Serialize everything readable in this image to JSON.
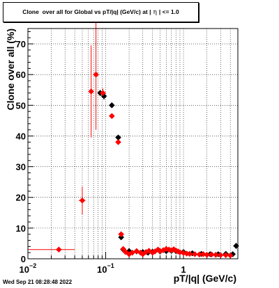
{
  "title": {
    "before_symbol": "Clone  over all for Global vs pT/|q| (GeV/c) at |",
    "symbol": "η",
    "after_symbol": "| <= 1.0"
  },
  "datestamp": "Wed Sep 21 08:28:48 2022",
  "chart_data": {
    "type": "scatter",
    "title": "Clone  over all for Global vs pT/|q| (GeV/c) at | η | <= 1.0",
    "xlabel": "pT/|q| (GeV/c)",
    "ylabel": "Clone  over all (%)",
    "xscale": "log",
    "xlim": [
      0.01,
      5.0
    ],
    "ylim": [
      0,
      75
    ],
    "grid": true,
    "x_ticks": [
      {
        "value": 0.01,
        "label": "10",
        "exponent": "−2"
      },
      {
        "value": 0.1,
        "label": "10",
        "exponent": "−1"
      },
      {
        "value": 1,
        "label": "1",
        "exponent": ""
      }
    ],
    "y_ticks": [
      0,
      10,
      20,
      30,
      40,
      50,
      60,
      70
    ],
    "colors": {
      "series_black": "#000000",
      "series_red": "#ff0000"
    },
    "series": [
      {
        "color": "#000000",
        "points": [
          {
            "x": 0.085,
            "y": 54.0,
            "yerr": 1.0
          },
          {
            "x": 0.095,
            "y": 53.0,
            "yerr": 1.2
          },
          {
            "x": 0.12,
            "y": 50.0,
            "yerr": 0.8
          },
          {
            "x": 0.145,
            "y": 39.5,
            "yerr": 0.7
          },
          {
            "x": 0.158,
            "y": 7.0,
            "yerr": 0.5
          },
          {
            "x": 0.168,
            "y": 3.0,
            "yerr": 0.3
          },
          {
            "x": 0.2,
            "y": 2.5
          },
          {
            "x": 0.25,
            "y": 2.4
          },
          {
            "x": 0.3,
            "y": 2.2
          },
          {
            "x": 0.35,
            "y": 2.0
          },
          {
            "x": 0.4,
            "y": 2.3
          },
          {
            "x": 0.5,
            "y": 2.4
          },
          {
            "x": 0.6,
            "y": 2.5
          },
          {
            "x": 0.7,
            "y": 2.6
          },
          {
            "x": 0.8,
            "y": 2.5
          },
          {
            "x": 1.0,
            "y": 2.2
          },
          {
            "x": 1.3,
            "y": 1.8
          },
          {
            "x": 1.7,
            "y": 1.6
          },
          {
            "x": 2.2,
            "y": 1.5
          },
          {
            "x": 2.8,
            "y": 1.5
          },
          {
            "x": 3.5,
            "y": 1.6
          },
          {
            "x": 4.3,
            "y": 1.5
          },
          {
            "x": 4.75,
            "y": 4.2,
            "yerr": 1.0
          }
        ]
      },
      {
        "color": "#ff0000",
        "points": [
          {
            "x": 0.025,
            "y": 3.0,
            "xerr": [
              0.01,
              0.04
            ],
            "yerr": 0.8
          },
          {
            "x": 0.05,
            "y": 19.0,
            "xerr": [
              0.045,
              0.055
            ],
            "yerr": 4.5
          },
          {
            "x": 0.065,
            "y": 54.5,
            "yerr": 15.0
          },
          {
            "x": 0.075,
            "y": 60.0,
            "yerr": 18.0
          },
          {
            "x": 0.092,
            "y": 54.0,
            "yerr": 1.5
          },
          {
            "x": 0.12,
            "y": 46.5,
            "yerr": 0.8
          },
          {
            "x": 0.145,
            "y": 38.0,
            "yerr": 0.7
          },
          {
            "x": 0.158,
            "y": 8.0,
            "yerr": 0.6
          },
          {
            "x": 0.168,
            "y": 3.2,
            "yerr": 0.4
          },
          {
            "x": 0.18,
            "y": 2.2
          },
          {
            "x": 0.2,
            "y": 1.5
          },
          {
            "x": 0.22,
            "y": 2.0
          },
          {
            "x": 0.25,
            "y": 2.5
          },
          {
            "x": 0.28,
            "y": 2.0
          },
          {
            "x": 0.3,
            "y": 1.5
          },
          {
            "x": 0.33,
            "y": 2.2
          },
          {
            "x": 0.36,
            "y": 2.6
          },
          {
            "x": 0.4,
            "y": 2.0
          },
          {
            "x": 0.43,
            "y": 2.4
          },
          {
            "x": 0.47,
            "y": 3.0
          },
          {
            "x": 0.5,
            "y": 2.5
          },
          {
            "x": 0.55,
            "y": 2.8
          },
          {
            "x": 0.6,
            "y": 3.2
          },
          {
            "x": 0.65,
            "y": 3.0
          },
          {
            "x": 0.7,
            "y": 2.8
          },
          {
            "x": 0.75,
            "y": 3.1
          },
          {
            "x": 0.8,
            "y": 2.7
          },
          {
            "x": 0.85,
            "y": 2.4
          },
          {
            "x": 0.9,
            "y": 2.1
          },
          {
            "x": 1.0,
            "y": 1.9
          },
          {
            "x": 1.1,
            "y": 1.7
          },
          {
            "x": 1.2,
            "y": 1.6
          },
          {
            "x": 1.4,
            "y": 1.5
          },
          {
            "x": 1.6,
            "y": 1.4
          },
          {
            "x": 1.8,
            "y": 1.5
          },
          {
            "x": 2.0,
            "y": 1.3
          },
          {
            "x": 2.3,
            "y": 1.4
          },
          {
            "x": 2.6,
            "y": 1.3
          },
          {
            "x": 3.0,
            "y": 1.2
          },
          {
            "x": 3.5,
            "y": 1.2
          },
          {
            "x": 4.0,
            "y": 1.1
          }
        ]
      }
    ]
  }
}
